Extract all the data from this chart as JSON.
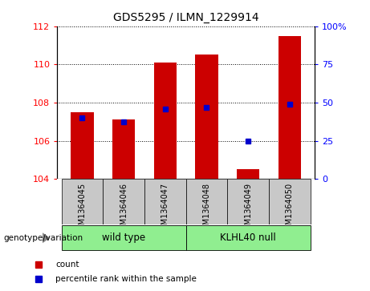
{
  "title": "GDS5295 / ILMN_1229914",
  "categories": [
    "GSM1364045",
    "GSM1364046",
    "GSM1364047",
    "GSM1364048",
    "GSM1364049",
    "GSM1364050"
  ],
  "red_values": [
    107.5,
    107.1,
    110.1,
    110.5,
    104.5,
    111.5
  ],
  "blue_values": [
    107.2,
    107.0,
    107.65,
    107.75,
    106.0,
    107.9
  ],
  "baseline": 104,
  "ylim_left": [
    104,
    112
  ],
  "ylim_right": [
    0,
    100
  ],
  "yticks_left": [
    104,
    106,
    108,
    110,
    112
  ],
  "yticks_right": [
    0,
    25,
    50,
    75,
    100
  ],
  "yticklabels_right": [
    "0",
    "25",
    "50",
    "75",
    "100%"
  ],
  "groups": [
    {
      "label": "wild type",
      "indices": [
        0,
        1,
        2
      ],
      "color": "#90EE90"
    },
    {
      "label": "KLHL40 null",
      "indices": [
        3,
        4,
        5
      ],
      "color": "#90EE90"
    }
  ],
  "group_label_prefix": "genotype/variation",
  "bar_width": 0.55,
  "bar_color": "#cc0000",
  "dot_color": "#0000cc",
  "bg_color": "#c8c8c8",
  "title_fontsize": 10,
  "tick_fontsize": 8,
  "label_fontsize": 8.5,
  "cat_fontsize": 7
}
